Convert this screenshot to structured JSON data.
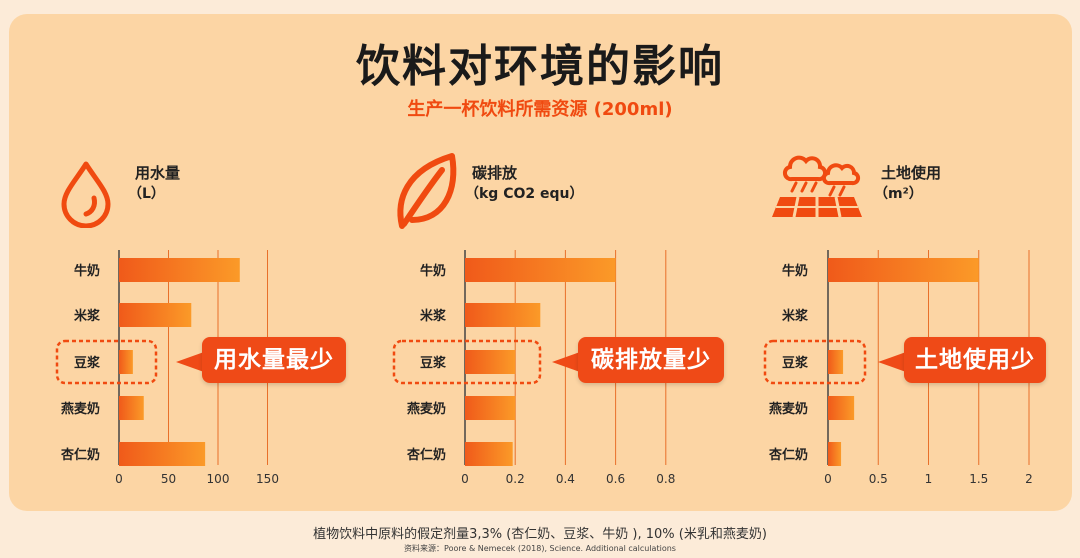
{
  "title": "饮料对环境的影响",
  "subtitle": "生产一杯饮料所需资源 (200ml)",
  "colors": {
    "accent": "#f04a10",
    "bar_start": "#f05a1a",
    "bar_end": "#fb9a28",
    "background": "#fcd5a4"
  },
  "chart_data": [
    {
      "type": "bar",
      "orientation": "horizontal",
      "title": "用水量",
      "unit": "（L）",
      "icon": "water-drop-icon",
      "categories": [
        "牛奶",
        "米浆",
        "豆浆",
        "燕麦奶",
        "杏仁奶"
      ],
      "values": [
        122,
        73,
        14,
        25,
        87
      ],
      "xlim": [
        0,
        160
      ],
      "xticks": [
        0,
        50,
        100,
        150
      ],
      "tick_labels": [
        "0",
        "50",
        "100",
        "150"
      ],
      "highlight_category": "豆浆",
      "callout": "用水量最少"
    },
    {
      "type": "bar",
      "orientation": "horizontal",
      "title": "碳排放",
      "unit": "（kg CO2 equ）",
      "icon": "leaf-icon",
      "categories": [
        "牛奶",
        "米浆",
        "豆浆",
        "燕麦奶",
        "杏仁奶"
      ],
      "values": [
        0.6,
        0.3,
        0.2,
        0.2,
        0.19
      ],
      "xlim": [
        0,
        1.0
      ],
      "xticks": [
        0,
        0.2,
        0.4,
        0.6,
        0.8
      ],
      "tick_labels": [
        "0",
        "0.2",
        "0.4",
        "0.6",
        "0.8"
      ],
      "highlight_category": "豆浆",
      "callout": "碳排放量少"
    },
    {
      "type": "bar",
      "orientation": "horizontal",
      "title": "土地使用",
      "unit": "（m²）",
      "icon": "farmland-rain-icon",
      "categories": [
        "牛奶",
        "米浆",
        "豆浆",
        "燕麦奶",
        "杏仁奶"
      ],
      "values": [
        1.5,
        0,
        0.15,
        0.26,
        0.13
      ],
      "xlim": [
        0,
        2.1
      ],
      "xticks": [
        0,
        0.5,
        1,
        1.5,
        2
      ],
      "tick_labels": [
        "0",
        "0.5",
        "1",
        "1.5",
        "2"
      ],
      "highlight_category": "豆浆",
      "callout": "土地使用少"
    }
  ],
  "footnote": "植物饮料中原料的假定剂量3,3% (杏仁奶、豆浆、牛奶 ), 10% (米乳和燕麦奶)",
  "source": "资料来源：Poore & Nemecek (2018), Science. Additional calculations"
}
